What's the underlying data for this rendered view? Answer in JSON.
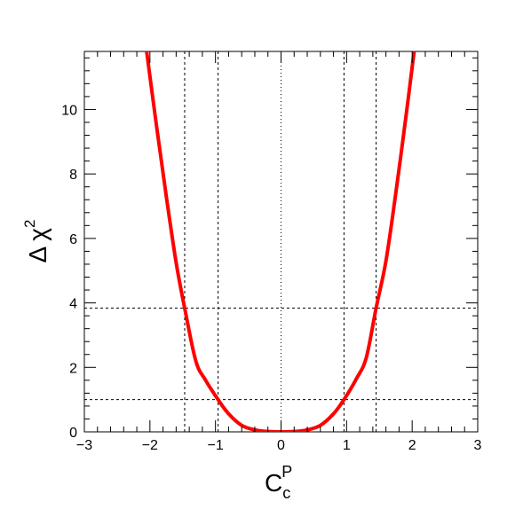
{
  "chart_data": {
    "type": "line",
    "title": "",
    "xlabel": {
      "base": "C",
      "sub": "c",
      "sup": "P"
    },
    "ylabel": {
      "delta": "Δ",
      "chi": "χ",
      "sup": "2"
    },
    "xlim": [
      -3,
      3
    ],
    "ylim": [
      0,
      11.8
    ],
    "xticks": [
      -3,
      -2,
      -1,
      0,
      1,
      2,
      3
    ],
    "xtick_labels": [
      "−3",
      "−2",
      "−1",
      "0",
      "1",
      "2",
      "3"
    ],
    "yticks": [
      0,
      2,
      4,
      6,
      8,
      10
    ],
    "ytick_labels": [
      "0",
      "2",
      "4",
      "6",
      "8",
      "10"
    ],
    "grid": false,
    "curve_color": "#ff0000",
    "series": [
      {
        "x": [
          -2.05,
          -1.9,
          -1.75,
          -1.6,
          -1.47,
          -1.3,
          -1.15,
          -0.96,
          -0.8,
          -0.6,
          -0.4,
          -0.2,
          0,
          0.2,
          0.4,
          0.6,
          0.8,
          0.96,
          1.15,
          1.3,
          1.45,
          1.6,
          1.75,
          1.9,
          2.03
        ],
        "y": [
          11.8,
          9.5,
          7.3,
          5.25,
          3.84,
          2.2,
          1.6,
          1.0,
          0.56,
          0.2,
          0.06,
          0.01,
          0,
          0.01,
          0.06,
          0.2,
          0.56,
          1.0,
          1.65,
          2.3,
          3.84,
          5.3,
          7.4,
          9.7,
          11.8
        ]
      }
    ],
    "reference_lines": {
      "horizontal": [
        1.0,
        3.84
      ],
      "vertical_dashed": [
        -1.47,
        -0.96,
        0.96,
        1.45
      ],
      "vertical_dotted": [
        0
      ]
    }
  }
}
